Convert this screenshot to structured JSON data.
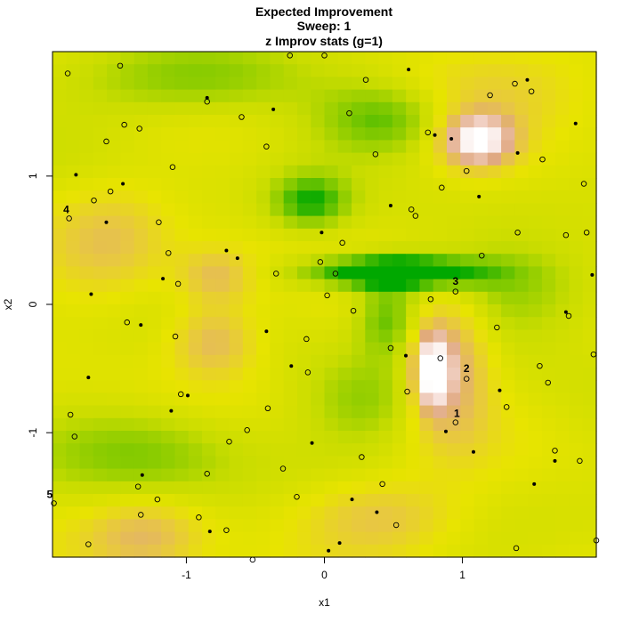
{
  "chart_data": {
    "type": "heatmap",
    "title": "Expected Improvement",
    "subtitle_lines": [
      "Sweep: 1",
      "z Improv stats (g=1)"
    ],
    "xlabel": "x1",
    "ylabel": "x2",
    "xlim": [
      -1.97,
      1.97
    ],
    "ylim": [
      -1.97,
      1.97
    ],
    "xticks": [
      -1,
      0,
      1
    ],
    "yticks": [
      -1,
      0,
      1
    ],
    "grid": false,
    "color_scale": [
      "#00a800",
      "#7cc800",
      "#c8dc00",
      "#e8e400",
      "#e8c840",
      "#e0a880",
      "#f4d8d0",
      "#ffffff"
    ],
    "surface_bumps": [
      {
        "cx": 1.11,
        "cy": 1.28,
        "sx": 0.18,
        "sy": 0.14,
        "amp": 1.0
      },
      {
        "cx": 0.78,
        "cy": -0.52,
        "sx": 0.09,
        "sy": 0.2,
        "amp": 1.0
      },
      {
        "cx": 0.92,
        "cy": -0.45,
        "sx": 0.2,
        "sy": 0.42,
        "amp": 0.55
      },
      {
        "cx": -0.8,
        "cy": -0.28,
        "sx": 0.22,
        "sy": 0.2,
        "amp": 0.45
      },
      {
        "cx": -0.78,
        "cy": 0.22,
        "sx": 0.2,
        "sy": 0.15,
        "amp": 0.4
      },
      {
        "cx": -1.55,
        "cy": 0.5,
        "sx": 0.3,
        "sy": 0.3,
        "amp": 0.3
      },
      {
        "cx": -1.3,
        "cy": -1.8,
        "sx": 0.3,
        "sy": 0.2,
        "amp": 0.4
      },
      {
        "cx": 0.4,
        "cy": -1.65,
        "sx": 0.4,
        "sy": 0.2,
        "amp": 0.35
      },
      {
        "cx": 1.2,
        "cy": 1.7,
        "sx": 0.6,
        "sy": 0.25,
        "amp": 0.25
      },
      {
        "cx": 0.5,
        "cy": 0.25,
        "sx": 0.45,
        "sy": 0.09,
        "amp": -1.0
      },
      {
        "cx": -0.1,
        "cy": 0.8,
        "sx": 0.2,
        "sy": 0.15,
        "amp": -0.55
      },
      {
        "cx": -0.95,
        "cy": 1.75,
        "sx": 0.6,
        "sy": 0.2,
        "amp": -0.4
      },
      {
        "cx": 0.45,
        "cy": 1.45,
        "sx": 0.35,
        "sy": 0.2,
        "amp": -0.5
      },
      {
        "cx": 0.45,
        "cy": -0.1,
        "sx": 0.15,
        "sy": 0.2,
        "amp": -0.4
      },
      {
        "cx": -1.25,
        "cy": -1.15,
        "sx": 0.5,
        "sy": 0.25,
        "amp": -0.35
      },
      {
        "cx": 0.3,
        "cy": -0.75,
        "sx": 0.3,
        "sy": 0.25,
        "amp": -0.3
      },
      {
        "cx": 1.4,
        "cy": 0.1,
        "sx": 0.5,
        "sy": 0.25,
        "amp": -0.3
      }
    ],
    "open_points": [
      [
        -1.86,
        1.8
      ],
      [
        -1.48,
        1.86
      ],
      [
        -0.25,
        1.94
      ],
      [
        0.0,
        1.94
      ],
      [
        0.3,
        1.75
      ],
      [
        1.2,
        1.63
      ],
      [
        1.38,
        1.72
      ],
      [
        1.5,
        1.66
      ],
      [
        -1.34,
        1.37
      ],
      [
        -1.45,
        1.4
      ],
      [
        -0.6,
        1.46
      ],
      [
        0.18,
        1.49
      ],
      [
        0.75,
        1.34
      ],
      [
        1.03,
        1.04
      ],
      [
        1.58,
        1.13
      ],
      [
        -1.58,
        1.27
      ],
      [
        -0.42,
        1.23
      ],
      [
        0.37,
        1.17
      ],
      [
        -0.85,
        1.58
      ],
      [
        -1.1,
        1.07
      ],
      [
        -1.55,
        0.88
      ],
      [
        -1.67,
        0.81
      ],
      [
        0.85,
        0.91
      ],
      [
        1.88,
        0.94
      ],
      [
        -1.85,
        0.67
      ],
      [
        -1.2,
        0.64
      ],
      [
        0.63,
        0.74
      ],
      [
        0.66,
        0.69
      ],
      [
        1.4,
        0.56
      ],
      [
        1.9,
        0.56
      ],
      [
        1.75,
        0.54
      ],
      [
        0.13,
        0.48
      ],
      [
        -1.13,
        0.4
      ],
      [
        1.14,
        0.38
      ],
      [
        -0.03,
        0.33
      ],
      [
        -0.35,
        0.24
      ],
      [
        0.08,
        0.24
      ],
      [
        -1.06,
        0.16
      ],
      [
        0.02,
        0.07
      ],
      [
        0.77,
        0.04
      ],
      [
        0.95,
        0.1
      ],
      [
        0.21,
        -0.05
      ],
      [
        1.77,
        -0.09
      ],
      [
        -1.43,
        -0.14
      ],
      [
        1.25,
        -0.18
      ],
      [
        -1.08,
        -0.25
      ],
      [
        -0.13,
        -0.27
      ],
      [
        0.48,
        -0.34
      ],
      [
        0.84,
        -0.42
      ],
      [
        1.95,
        -0.39
      ],
      [
        -0.12,
        -0.53
      ],
      [
        1.56,
        -0.48
      ],
      [
        1.03,
        -0.58
      ],
      [
        1.62,
        -0.61
      ],
      [
        -1.04,
        -0.7
      ],
      [
        0.6,
        -0.68
      ],
      [
        1.32,
        -0.8
      ],
      [
        -0.41,
        -0.81
      ],
      [
        -1.84,
        -0.86
      ],
      [
        0.95,
        -0.92
      ],
      [
        -1.81,
        -1.03
      ],
      [
        -0.56,
        -0.98
      ],
      [
        -0.69,
        -1.07
      ],
      [
        1.67,
        -1.14
      ],
      [
        1.85,
        -1.22
      ],
      [
        -0.85,
        -1.32
      ],
      [
        -0.3,
        -1.28
      ],
      [
        0.27,
        -1.19
      ],
      [
        -1.35,
        -1.42
      ],
      [
        0.42,
        -1.4
      ],
      [
        -1.21,
        -1.52
      ],
      [
        -1.96,
        -1.55
      ],
      [
        -0.2,
        -1.5
      ],
      [
        -1.33,
        -1.64
      ],
      [
        -0.91,
        -1.66
      ],
      [
        -0.71,
        -1.76
      ],
      [
        0.52,
        -1.72
      ],
      [
        -1.71,
        -1.87
      ],
      [
        -0.52,
        -1.99
      ],
      [
        1.39,
        -1.9
      ],
      [
        1.97,
        -1.84
      ]
    ],
    "filled_points": [
      [
        0.61,
        1.83
      ],
      [
        1.47,
        1.75
      ],
      [
        -0.85,
        1.61
      ],
      [
        -0.37,
        1.52
      ],
      [
        1.82,
        1.41
      ],
      [
        0.8,
        1.32
      ],
      [
        0.92,
        1.29
      ],
      [
        1.4,
        1.18
      ],
      [
        -1.8,
        1.01
      ],
      [
        -1.46,
        0.94
      ],
      [
        1.12,
        0.84
      ],
      [
        0.48,
        0.77
      ],
      [
        -1.58,
        0.64
      ],
      [
        -0.02,
        0.56
      ],
      [
        -0.71,
        0.42
      ],
      [
        -0.63,
        0.36
      ],
      [
        -1.17,
        0.2
      ],
      [
        1.94,
        0.23
      ],
      [
        -1.69,
        0.08
      ],
      [
        1.75,
        -0.06
      ],
      [
        -1.33,
        -0.16
      ],
      [
        -0.42,
        -0.21
      ],
      [
        0.59,
        -0.4
      ],
      [
        -0.24,
        -0.48
      ],
      [
        -1.71,
        -0.57
      ],
      [
        -0.99,
        -0.71
      ],
      [
        1.27,
        -0.67
      ],
      [
        -1.11,
        -0.83
      ],
      [
        0.88,
        -0.99
      ],
      [
        -0.09,
        -1.08
      ],
      [
        1.08,
        -1.15
      ],
      [
        1.67,
        -1.22
      ],
      [
        -1.32,
        -1.33
      ],
      [
        1.52,
        -1.4
      ],
      [
        0.2,
        -1.52
      ],
      [
        0.38,
        -1.62
      ],
      [
        -0.83,
        -1.77
      ],
      [
        0.11,
        -1.86
      ],
      [
        0.03,
        -1.92
      ]
    ],
    "labeled_points": [
      {
        "label": "1",
        "x": 0.96,
        "y": -0.85
      },
      {
        "label": "2",
        "x": 1.03,
        "y": -0.5
      },
      {
        "label": "3",
        "x": 0.95,
        "y": 0.18
      },
      {
        "label": "4",
        "x": -1.87,
        "y": 0.74
      },
      {
        "label": "5",
        "x": -1.99,
        "y": -1.48
      }
    ]
  }
}
